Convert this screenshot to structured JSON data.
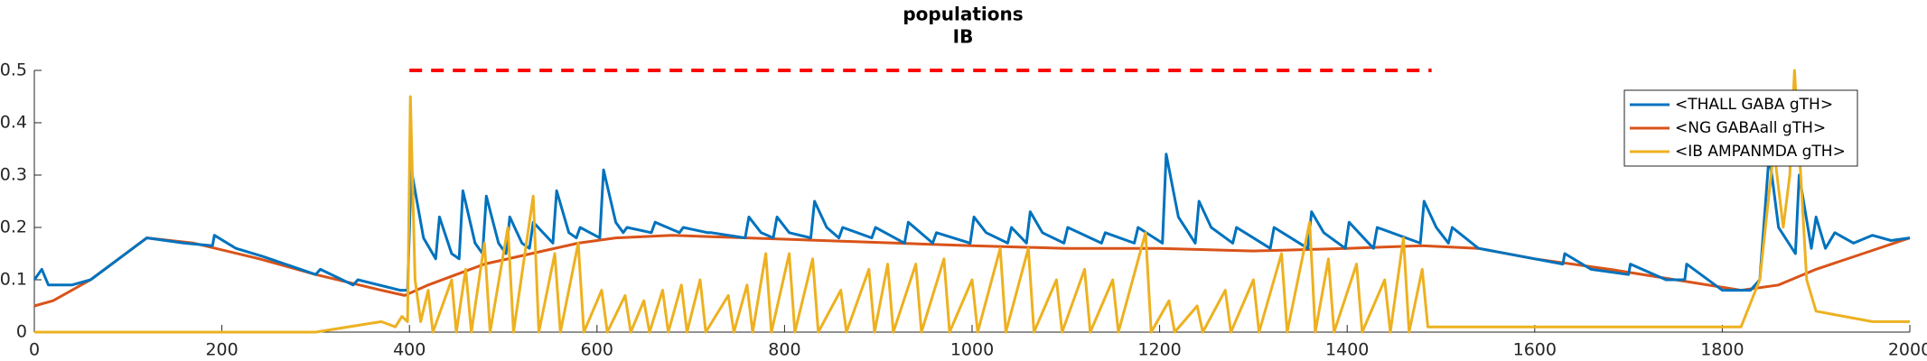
{
  "chart_data": {
    "type": "line",
    "title": "populations",
    "subtitle": "IB",
    "xlim": [
      0,
      2000
    ],
    "xticks": [
      0,
      200,
      400,
      600,
      800,
      1000,
      1200,
      1400,
      1600,
      1800,
      2000
    ],
    "ylim": [
      0,
      0.5
    ],
    "yticks": [
      0,
      0.1,
      0.2,
      0.3,
      0.4,
      0.5
    ],
    "legend": "upper right",
    "series": [
      {
        "name": "<THALL GABA gTH>",
        "color": "#0072bd",
        "x": [
          0,
          8,
          15,
          40,
          60,
          90,
          120,
          160,
          190,
          192,
          215,
          243,
          300,
          305,
          340,
          345,
          390,
          398,
          402,
          415,
          428,
          432,
          445,
          453,
          457,
          470,
          478,
          482,
          495,
          503,
          507,
          520,
          528,
          532,
          553,
          557,
          570,
          578,
          582,
          603,
          607,
          620,
          628,
          632,
          658,
          662,
          688,
          692,
          718,
          722,
          758,
          762,
          775,
          788,
          792,
          805,
          828,
          832,
          845,
          858,
          862,
          893,
          897,
          928,
          932,
          958,
          962,
          998,
          1002,
          1015,
          1038,
          1042,
          1058,
          1062,
          1075,
          1098,
          1102,
          1138,
          1142,
          1173,
          1177,
          1203,
          1207,
          1220,
          1238,
          1242,
          1255,
          1278,
          1282,
          1318,
          1322,
          1358,
          1362,
          1375,
          1398,
          1402,
          1428,
          1432,
          1478,
          1482,
          1495,
          1508,
          1512,
          1540,
          1600,
          1630,
          1632,
          1660,
          1700,
          1702,
          1740,
          1760,
          1762,
          1800,
          1830,
          1840,
          1850,
          1860,
          1878,
          1882,
          1895,
          1900,
          1910,
          1920,
          1940,
          1960,
          1980,
          2000
        ],
        "values": [
          0.1,
          0.12,
          0.09,
          0.09,
          0.1,
          0.14,
          0.18,
          0.17,
          0.165,
          0.185,
          0.16,
          0.145,
          0.11,
          0.12,
          0.09,
          0.1,
          0.08,
          0.08,
          0.31,
          0.18,
          0.14,
          0.22,
          0.15,
          0.14,
          0.27,
          0.17,
          0.15,
          0.26,
          0.17,
          0.15,
          0.22,
          0.17,
          0.16,
          0.21,
          0.17,
          0.27,
          0.19,
          0.18,
          0.2,
          0.18,
          0.31,
          0.21,
          0.19,
          0.2,
          0.19,
          0.21,
          0.19,
          0.2,
          0.19,
          0.19,
          0.18,
          0.22,
          0.19,
          0.18,
          0.22,
          0.19,
          0.18,
          0.25,
          0.2,
          0.18,
          0.2,
          0.18,
          0.2,
          0.17,
          0.21,
          0.17,
          0.19,
          0.17,
          0.22,
          0.19,
          0.17,
          0.2,
          0.17,
          0.23,
          0.19,
          0.17,
          0.2,
          0.17,
          0.19,
          0.17,
          0.2,
          0.17,
          0.34,
          0.22,
          0.17,
          0.25,
          0.2,
          0.17,
          0.2,
          0.16,
          0.2,
          0.16,
          0.23,
          0.19,
          0.16,
          0.21,
          0.16,
          0.2,
          0.17,
          0.25,
          0.2,
          0.17,
          0.2,
          0.16,
          0.14,
          0.13,
          0.15,
          0.12,
          0.11,
          0.13,
          0.1,
          0.1,
          0.13,
          0.08,
          0.08,
          0.1,
          0.34,
          0.2,
          0.15,
          0.3,
          0.16,
          0.22,
          0.16,
          0.19,
          0.17,
          0.185,
          0.175,
          0.18
        ]
      },
      {
        "name": "<NG GABAall gTH>",
        "color": "#d95319",
        "x": [
          0,
          20,
          60,
          120,
          170,
          240,
          300,
          370,
          395,
          420,
          450,
          480,
          530,
          580,
          620,
          680,
          760,
          840,
          920,
          1000,
          1100,
          1200,
          1300,
          1400,
          1480,
          1540,
          1600,
          1680,
          1750,
          1820,
          1860,
          1900,
          1950,
          2000
        ],
        "values": [
          0.05,
          0.06,
          0.1,
          0.18,
          0.17,
          0.14,
          0.11,
          0.08,
          0.07,
          0.09,
          0.11,
          0.13,
          0.15,
          0.17,
          0.18,
          0.185,
          0.18,
          0.175,
          0.17,
          0.165,
          0.16,
          0.16,
          0.155,
          0.16,
          0.165,
          0.16,
          0.14,
          0.12,
          0.1,
          0.08,
          0.09,
          0.12,
          0.15,
          0.18
        ]
      },
      {
        "name": "<IB AMPANMDA gTH>",
        "color": "#edb120",
        "x": [
          0,
          300,
          370,
          385,
          392,
          398,
          401,
          406,
          412,
          420,
          425,
          445,
          450,
          460,
          466,
          480,
          486,
          505,
          511,
          532,
          538,
          555,
          561,
          580,
          586,
          605,
          611,
          630,
          636,
          650,
          656,
          670,
          676,
          690,
          696,
          710,
          716,
          740,
          746,
          760,
          766,
          780,
          786,
          805,
          811,
          830,
          836,
          860,
          866,
          890,
          896,
          910,
          916,
          940,
          946,
          970,
          976,
          1000,
          1006,
          1030,
          1036,
          1060,
          1066,
          1090,
          1096,
          1120,
          1126,
          1150,
          1156,
          1185,
          1191,
          1210,
          1216,
          1240,
          1246,
          1270,
          1276,
          1300,
          1306,
          1330,
          1336,
          1360,
          1366,
          1380,
          1386,
          1410,
          1416,
          1440,
          1446,
          1460,
          1466,
          1480,
          1486,
          1600,
          1700,
          1820,
          1840,
          1855,
          1865,
          1872,
          1877,
          1882,
          1890,
          1900,
          1930,
          1960,
          2000
        ],
        "values": [
          0,
          0,
          0.02,
          0.01,
          0.03,
          0.02,
          0.45,
          0.1,
          0.02,
          0.08,
          0,
          0.1,
          0,
          0.12,
          0,
          0.17,
          0,
          0.2,
          0,
          0.26,
          0,
          0.15,
          0,
          0.17,
          0,
          0.08,
          0,
          0.07,
          0,
          0.06,
          0,
          0.08,
          0,
          0.09,
          0,
          0.1,
          0,
          0.07,
          0,
          0.09,
          0,
          0.15,
          0,
          0.15,
          0,
          0.14,
          0,
          0.08,
          0,
          0.12,
          0,
          0.13,
          0,
          0.13,
          0,
          0.14,
          0,
          0.1,
          0,
          0.16,
          0,
          0.16,
          0,
          0.1,
          0,
          0.12,
          0,
          0.1,
          0,
          0.19,
          0,
          0.06,
          0,
          0.05,
          0,
          0.08,
          0,
          0.1,
          0,
          0.15,
          0,
          0.21,
          0,
          0.14,
          0,
          0.13,
          0,
          0.1,
          0,
          0.18,
          0,
          0.12,
          0.01,
          0.01,
          0.01,
          0.01,
          0.1,
          0.35,
          0.2,
          0.3,
          0.5,
          0.35,
          0.1,
          0.04,
          0.03,
          0.02,
          0.02
        ]
      }
    ],
    "stimulus": {
      "x": [
        400,
        1490
      ],
      "values": [
        0.5,
        0.5
      ],
      "color": "#ff0000",
      "dashed": true
    }
  }
}
